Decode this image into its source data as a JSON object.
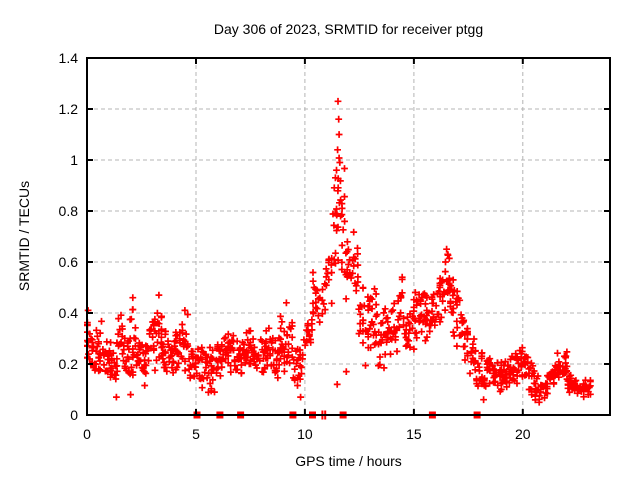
{
  "title": "Day 306 of 2023, SRMTID for receiver ptgg",
  "chart_data": {
    "type": "scatter",
    "title": "Day 306 of 2023, SRMTID for receiver ptgg",
    "xlabel": "GPS time / hours",
    "ylabel": "SRMTID / TECUs",
    "xlim": [
      0,
      24
    ],
    "ylim": [
      0,
      1.4
    ],
    "xticks": [
      [
        0,
        "0"
      ],
      [
        5,
        "5"
      ],
      [
        10,
        "10"
      ],
      [
        15,
        "15"
      ],
      [
        20,
        "20"
      ]
    ],
    "yticks": [
      [
        0,
        "0"
      ],
      [
        0.2,
        "0.2"
      ],
      [
        0.4,
        "0.4"
      ],
      [
        0.6,
        "0.6"
      ],
      [
        0.8,
        "0.8"
      ],
      [
        1,
        "1"
      ],
      [
        1.2,
        "1.2"
      ],
      [
        1.4,
        "1.4"
      ]
    ],
    "grid": true,
    "legend": "none",
    "marker": "plus",
    "marker_color": "#ff0000",
    "grid_color": "#b4b4b4",
    "border_color": "#000000",
    "x_data_min": 0.02,
    "x_data_max": 23.1,
    "seed": 306,
    "envelope_note": "dense scatter summarized as segments [x_center, y_min, y_max, n_points], segment half-width 0.15 h",
    "envelope": [
      [
        0.0,
        0.18,
        0.42,
        14
      ],
      [
        0.3,
        0.16,
        0.34,
        16
      ],
      [
        0.6,
        0.15,
        0.38,
        16
      ],
      [
        0.9,
        0.14,
        0.3,
        15
      ],
      [
        1.2,
        0.08,
        0.3,
        16
      ],
      [
        1.5,
        0.14,
        0.45,
        17
      ],
      [
        1.8,
        0.12,
        0.35,
        16
      ],
      [
        2.1,
        0.14,
        0.46,
        17
      ],
      [
        2.4,
        0.15,
        0.35,
        16
      ],
      [
        2.7,
        0.1,
        0.33,
        16
      ],
      [
        3.0,
        0.15,
        0.44,
        16
      ],
      [
        3.3,
        0.16,
        0.48,
        16
      ],
      [
        3.6,
        0.13,
        0.35,
        16
      ],
      [
        3.9,
        0.14,
        0.32,
        15
      ],
      [
        4.2,
        0.15,
        0.36,
        16
      ],
      [
        4.5,
        0.14,
        0.45,
        16
      ],
      [
        4.8,
        0.12,
        0.31,
        15
      ],
      [
        5.1,
        0.12,
        0.28,
        14
      ],
      [
        5.4,
        0.1,
        0.3,
        15
      ],
      [
        5.7,
        0.08,
        0.28,
        15
      ],
      [
        6.0,
        0.12,
        0.31,
        15
      ],
      [
        6.3,
        0.14,
        0.34,
        16
      ],
      [
        6.6,
        0.15,
        0.35,
        16
      ],
      [
        6.9,
        0.12,
        0.3,
        15
      ],
      [
        7.2,
        0.14,
        0.33,
        16
      ],
      [
        7.5,
        0.15,
        0.37,
        16
      ],
      [
        7.8,
        0.13,
        0.31,
        15
      ],
      [
        8.1,
        0.14,
        0.35,
        16
      ],
      [
        8.4,
        0.15,
        0.36,
        16
      ],
      [
        8.7,
        0.12,
        0.33,
        15
      ],
      [
        9.0,
        0.15,
        0.42,
        16
      ],
      [
        9.3,
        0.18,
        0.39,
        15
      ],
      [
        9.6,
        0.08,
        0.3,
        13
      ],
      [
        9.9,
        0.12,
        0.32,
        10
      ],
      [
        10.2,
        0.22,
        0.45,
        12
      ],
      [
        10.5,
        0.28,
        0.58,
        13
      ],
      [
        10.8,
        0.3,
        0.55,
        8
      ],
      [
        11.1,
        0.35,
        0.75,
        12
      ],
      [
        11.4,
        0.45,
        1.0,
        16
      ],
      [
        11.7,
        0.5,
        1.1,
        16
      ],
      [
        12.0,
        0.42,
        0.72,
        15
      ],
      [
        12.3,
        0.45,
        0.75,
        15
      ],
      [
        12.6,
        0.25,
        0.55,
        15
      ],
      [
        12.9,
        0.18,
        0.5,
        15
      ],
      [
        13.2,
        0.22,
        0.52,
        15
      ],
      [
        13.5,
        0.15,
        0.46,
        15
      ],
      [
        13.8,
        0.2,
        0.44,
        15
      ],
      [
        14.1,
        0.22,
        0.45,
        15
      ],
      [
        14.4,
        0.25,
        0.55,
        15
      ],
      [
        14.7,
        0.22,
        0.46,
        15
      ],
      [
        15.0,
        0.22,
        0.5,
        15
      ],
      [
        15.3,
        0.28,
        0.56,
        15
      ],
      [
        15.6,
        0.28,
        0.5,
        15
      ],
      [
        15.9,
        0.28,
        0.52,
        15
      ],
      [
        16.2,
        0.33,
        0.62,
        15
      ],
      [
        16.5,
        0.38,
        0.66,
        15
      ],
      [
        16.8,
        0.3,
        0.56,
        15
      ],
      [
        17.1,
        0.24,
        0.5,
        15
      ],
      [
        17.4,
        0.18,
        0.4,
        15
      ],
      [
        17.7,
        0.14,
        0.34,
        15
      ],
      [
        18.0,
        0.1,
        0.3,
        15
      ],
      [
        18.3,
        0.08,
        0.26,
        15
      ],
      [
        18.6,
        0.1,
        0.25,
        15
      ],
      [
        18.9,
        0.09,
        0.22,
        15
      ],
      [
        19.2,
        0.1,
        0.25,
        15
      ],
      [
        19.5,
        0.1,
        0.26,
        15
      ],
      [
        19.8,
        0.12,
        0.28,
        16
      ],
      [
        20.1,
        0.12,
        0.3,
        16
      ],
      [
        20.4,
        0.07,
        0.22,
        15
      ],
      [
        20.7,
        0.04,
        0.16,
        14
      ],
      [
        21.0,
        0.05,
        0.17,
        14
      ],
      [
        21.3,
        0.09,
        0.22,
        15
      ],
      [
        21.6,
        0.12,
        0.25,
        16
      ],
      [
        21.9,
        0.13,
        0.26,
        16
      ],
      [
        22.2,
        0.08,
        0.18,
        16
      ],
      [
        22.5,
        0.06,
        0.16,
        15
      ],
      [
        22.8,
        0.07,
        0.14,
        14
      ],
      [
        23.0,
        0.08,
        0.14,
        10
      ]
    ],
    "highlight_points": [
      [
        11.52,
        1.23
      ],
      [
        11.55,
        1.16
      ],
      [
        11.57,
        1.1
      ],
      [
        11.5,
        1.04
      ],
      [
        11.6,
        0.99
      ],
      [
        11.45,
        0.96
      ],
      [
        11.4,
        0.93
      ],
      [
        10.42,
        0.5
      ],
      [
        9.15,
        0.44
      ],
      [
        0.05,
        0.41
      ],
      [
        3.3,
        0.47
      ],
      [
        2.1,
        0.46
      ],
      [
        16.5,
        0.65
      ],
      [
        16.55,
        0.63
      ],
      [
        16.45,
        0.6
      ],
      [
        1.35,
        0.07
      ],
      [
        2.0,
        0.08
      ],
      [
        5.85,
        0.09
      ],
      [
        9.8,
        0.07
      ],
      [
        11.48,
        0.12
      ],
      [
        11.9,
        0.17
      ],
      [
        18.2,
        0.06
      ],
      [
        20.75,
        0.05
      ],
      [
        23.0,
        0.08
      ]
    ],
    "gap_markers": {
      "squares_x": [
        5.05,
        6.1,
        7.05,
        9.45,
        10.35,
        11.75,
        15.85,
        17.9
      ],
      "thin_ticks_x": [
        10.8,
        10.93
      ]
    }
  }
}
